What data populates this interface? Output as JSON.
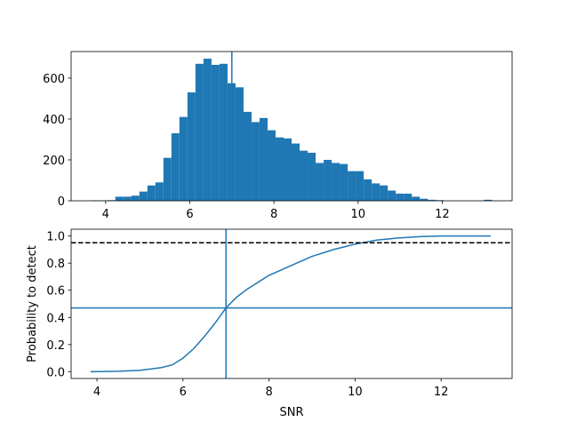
{
  "chart_data": [
    {
      "type": "histogram",
      "bins": [
        3.66,
        3.85,
        4.041,
        4.231,
        4.422,
        4.612,
        4.802,
        4.993,
        5.183,
        5.374,
        5.564,
        5.754,
        5.945,
        6.135,
        6.326,
        6.516,
        6.706,
        6.897,
        7.087,
        7.278,
        7.468,
        7.658,
        7.849,
        8.039,
        8.23,
        8.42,
        8.61,
        8.801,
        8.991,
        9.182,
        9.372,
        9.562,
        9.753,
        9.943,
        10.134,
        10.324,
        10.514,
        10.705,
        10.895,
        11.086,
        11.276,
        11.466,
        11.657,
        11.847,
        12.038,
        12.228,
        12.418,
        12.609,
        12.799,
        12.99,
        13.18
      ],
      "values": [
        2,
        2,
        3,
        20,
        20,
        25,
        45,
        75,
        90,
        210,
        330,
        410,
        530,
        670,
        695,
        665,
        670,
        575,
        555,
        435,
        385,
        405,
        345,
        310,
        305,
        280,
        245,
        235,
        185,
        200,
        185,
        180,
        145,
        145,
        105,
        85,
        75,
        50,
        35,
        35,
        20,
        10,
        5,
        3,
        0,
        0,
        0,
        0,
        0,
        5
      ],
      "color": "#1f77b4",
      "vline": 7.0,
      "xlim": [
        3.18,
        13.66
      ],
      "xticks": [
        4,
        6,
        8,
        10,
        12
      ],
      "ylim": [
        0,
        730
      ],
      "yticks": [
        0,
        200,
        400,
        600
      ]
    },
    {
      "type": "line",
      "x": [
        3.85,
        4.5,
        5.0,
        5.5,
        5.75,
        6.0,
        6.25,
        6.5,
        6.75,
        7.0,
        7.25,
        7.5,
        7.75,
        8.0,
        8.5,
        9.0,
        9.5,
        10.0,
        10.5,
        11.0,
        11.5,
        12.0,
        13.15
      ],
      "values": [
        0.0,
        0.003,
        0.01,
        0.03,
        0.05,
        0.1,
        0.17,
        0.26,
        0.36,
        0.47,
        0.55,
        0.61,
        0.66,
        0.71,
        0.78,
        0.85,
        0.9,
        0.94,
        0.97,
        0.985,
        0.995,
        1.0,
        1.0
      ],
      "color": "#1f77b4",
      "vline": 7.0,
      "hline": 0.47,
      "threshold": {
        "value": 0.95,
        "color": "#000000",
        "style": "dashed"
      },
      "x_label": "SNR",
      "y_label": "Probability to detect",
      "xlim": [
        3.4,
        13.65
      ],
      "xticks": [
        4,
        6,
        8,
        10,
        12
      ],
      "ylim": [
        -0.05,
        1.05
      ],
      "yticks": [
        {
          "value": 0,
          "label": "0.0"
        },
        0.2,
        0.4,
        0.6,
        0.8,
        {
          "value": 1,
          "label": "1.0"
        }
      ]
    }
  ]
}
